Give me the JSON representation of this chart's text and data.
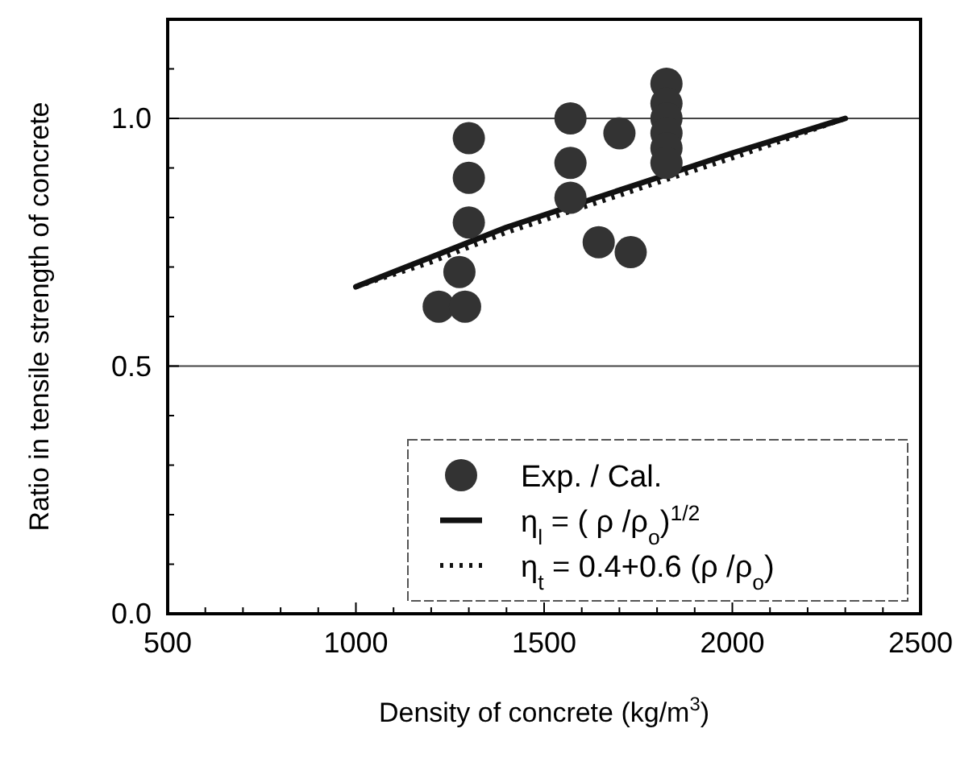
{
  "chart_data": {
    "type": "scatter",
    "xlabel": "Density of concrete (kg/m$^{3}$)",
    "ylabel": "Ratio in tensile strength of concrete",
    "xlim": [
      500,
      2500
    ],
    "ylim": [
      0,
      1.2
    ],
    "xticks": [
      500,
      {
        "value": 600,
        "label": null
      },
      {
        "value": 700,
        "label": null
      },
      {
        "value": 800,
        "label": null
      },
      {
        "value": 900,
        "label": null
      },
      1000,
      {
        "value": 1100,
        "label": null
      },
      {
        "value": 1200,
        "label": null
      },
      {
        "value": 1300,
        "label": null
      },
      {
        "value": 1400,
        "label": null
      },
      1500,
      {
        "value": 1600,
        "label": null
      },
      {
        "value": 1700,
        "label": null
      },
      {
        "value": 1800,
        "label": null
      },
      {
        "value": 1900,
        "label": null
      },
      2000,
      {
        "value": 2100,
        "label": null
      },
      {
        "value": 2200,
        "label": null
      },
      {
        "value": 2300,
        "label": null
      },
      {
        "value": 2400,
        "label": null
      },
      2500
    ],
    "yticks": [
      {
        "value": 0,
        "label": "0.0"
      },
      {
        "value": 0.1,
        "label": null
      },
      {
        "value": 0.2,
        "label": null
      },
      {
        "value": 0.3,
        "label": null
      },
      {
        "value": 0.4,
        "label": null
      },
      0.5,
      {
        "value": 0.6,
        "label": null
      },
      {
        "value": 0.7,
        "label": null
      },
      {
        "value": 0.8,
        "label": null
      },
      {
        "value": 0.9,
        "label": null
      },
      {
        "value": 1,
        "label": "1.0"
      },
      {
        "value": 1.1,
        "label": null
      }
    ],
    "grid": "y",
    "legend": "bottom right",
    "series": [
      {
        "name": "Exp. / Cal.",
        "marker": "circle",
        "color": "#333333",
        "x": [
          1300,
          1300,
          1300,
          1275,
          1220,
          1290,
          1570,
          1570,
          1570,
          1700,
          1645,
          1730,
          1825,
          1825,
          1825,
          1825,
          1825,
          1825
        ],
        "values": [
          0.96,
          0.88,
          0.79,
          0.69,
          0.62,
          0.62,
          1.0,
          0.91,
          0.84,
          0.97,
          0.75,
          0.73,
          1.07,
          1.03,
          1.0,
          0.97,
          0.94,
          0.91
        ]
      },
      {
        "name": "η$_{l}$ = ( ρ /ρ$_{o}$)$^{1/2}$",
        "type": "line",
        "line_style": "solid",
        "color": "#111111",
        "x": [
          1000,
          1200,
          1400,
          1600,
          1800,
          2000,
          2300
        ],
        "values": [
          0.66,
          0.72,
          0.78,
          0.83,
          0.88,
          0.93,
          1.0
        ]
      },
      {
        "name": "η$_{t}$ = 0.4+0.6 (ρ /ρ$_{o}$)",
        "type": "line",
        "line_style": "dotted",
        "color": "#111111",
        "x": [
          1000,
          1200,
          1400,
          1600,
          1800,
          2000,
          2300
        ],
        "values": [
          0.66,
          0.71,
          0.77,
          0.82,
          0.87,
          0.92,
          1.0
        ]
      }
    ]
  }
}
